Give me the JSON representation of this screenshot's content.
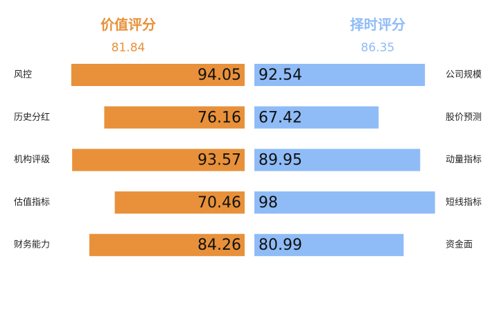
{
  "chart_data": [
    {
      "type": "bar",
      "title": "价值评分",
      "score": 81.84,
      "color": "#e8913a",
      "categories": [
        "风控",
        "历史分红",
        "机构评级",
        "估值指标",
        "财务能力"
      ],
      "values": [
        94.05,
        76.16,
        93.57,
        70.46,
        84.26
      ]
    },
    {
      "type": "bar",
      "title": "择时评分",
      "score": 86.35,
      "color": "#8fbcf7",
      "categories": [
        "公司规模",
        "股价预测",
        "动量指标",
        "短线指标",
        "资金面"
      ],
      "values": [
        92.54,
        67.42,
        89.95,
        98,
        80.99
      ]
    }
  ]
}
